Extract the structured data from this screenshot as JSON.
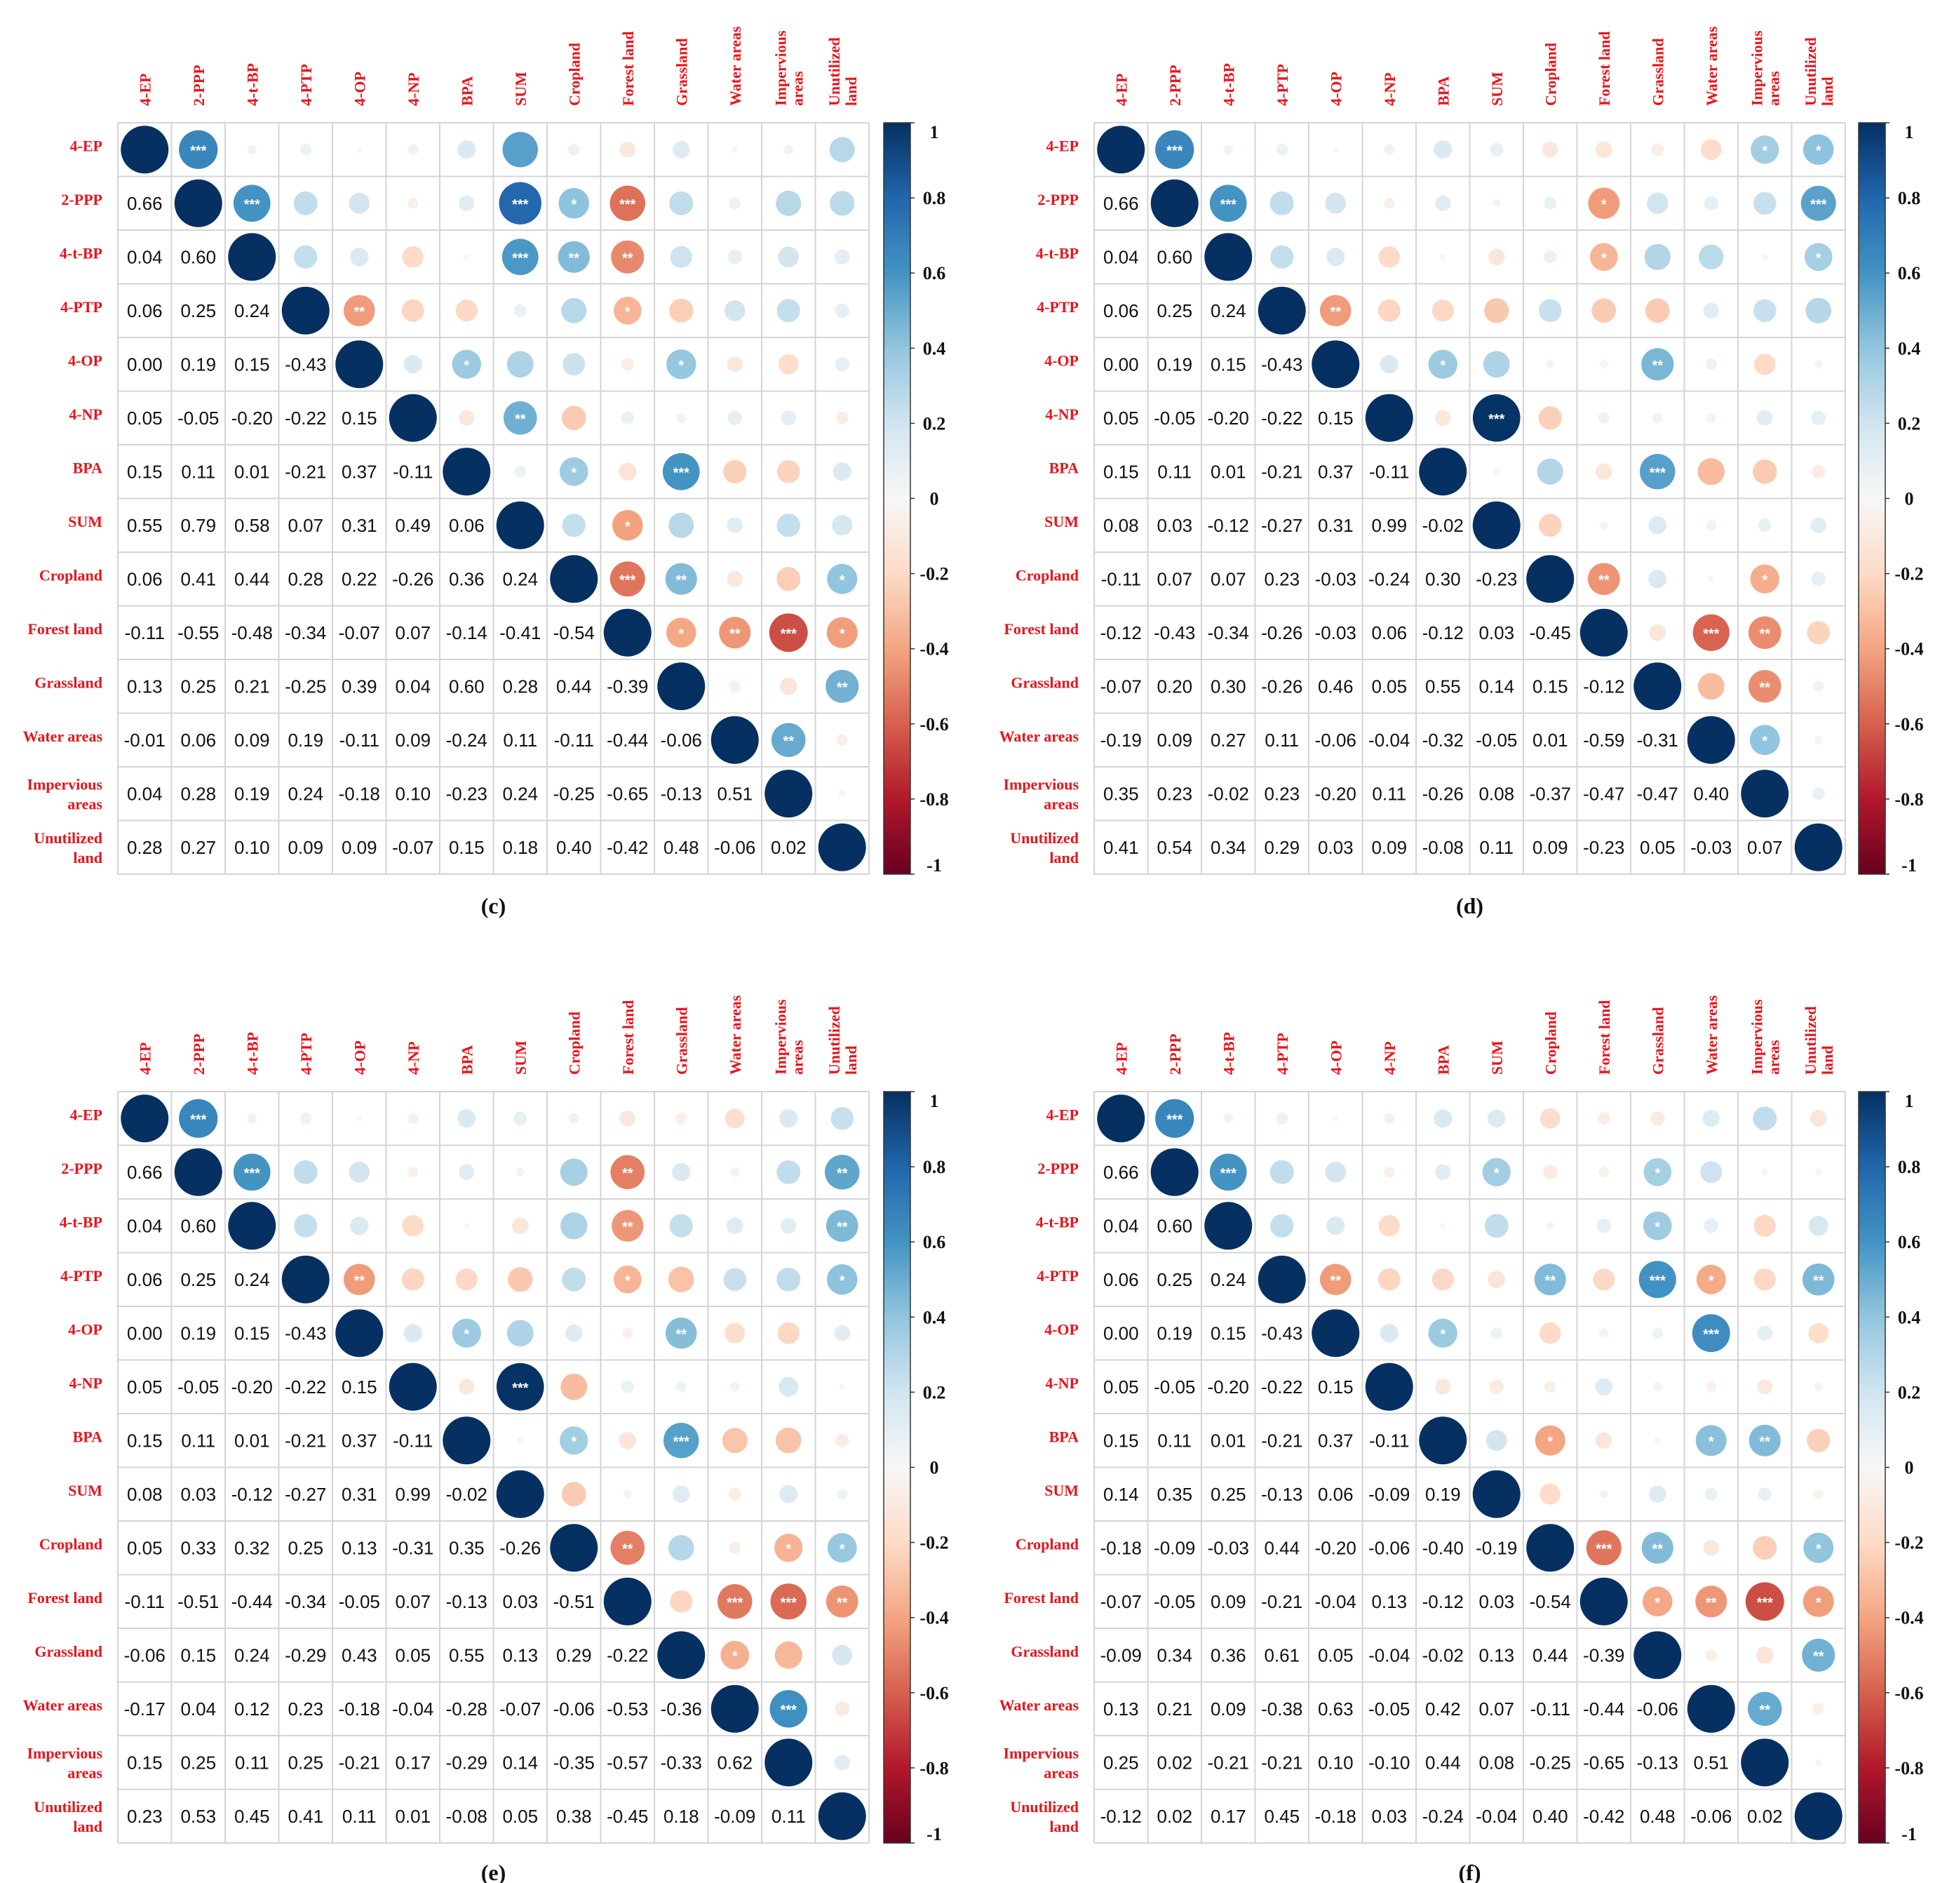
{
  "chart_data": [
    {
      "type": "heatmap",
      "title": "(c)",
      "variables": [
        "4-EP",
        "2-PPP",
        "4-t-BP",
        "4-PTP",
        "4-OP",
        "4-NP",
        "BPA",
        "SUM",
        "Cropland",
        "Forest land",
        "Grassland",
        "Water areas",
        "Impervious areas",
        "Unutilized land"
      ],
      "lower_values": [
        [],
        [
          0.66
        ],
        [
          0.04,
          0.6
        ],
        [
          0.06,
          0.25,
          0.24
        ],
        [
          0.0,
          0.19,
          0.15,
          -0.43
        ],
        [
          0.05,
          -0.05,
          -0.2,
          -0.22,
          0.15
        ],
        [
          0.15,
          0.11,
          0.01,
          -0.21,
          0.37,
          -0.11
        ],
        [
          0.55,
          0.79,
          0.58,
          0.07,
          0.31,
          0.49,
          0.06
        ],
        [
          0.06,
          0.41,
          0.44,
          0.28,
          0.22,
          -0.26,
          0.36,
          0.24
        ],
        [
          -0.11,
          -0.55,
          -0.48,
          -0.34,
          -0.07,
          0.07,
          -0.14,
          -0.41,
          -0.54
        ],
        [
          0.13,
          0.25,
          0.21,
          -0.25,
          0.39,
          0.04,
          0.6,
          0.28,
          0.44,
          -0.39
        ],
        [
          -0.01,
          0.06,
          0.09,
          0.19,
          -0.11,
          0.09,
          -0.24,
          0.11,
          -0.11,
          -0.44,
          -0.06
        ],
        [
          0.04,
          0.28,
          0.19,
          0.24,
          -0.18,
          0.1,
          -0.23,
          0.24,
          -0.25,
          -0.65,
          -0.13,
          0.51
        ],
        [
          0.28,
          0.27,
          0.1,
          0.09,
          0.09,
          -0.07,
          0.15,
          0.18,
          0.4,
          -0.42,
          0.48,
          -0.06,
          0.02
        ]
      ],
      "significance": [
        [
          0,
          1,
          "***"
        ],
        [
          1,
          2,
          "***"
        ],
        [
          1,
          7,
          "***"
        ],
        [
          1,
          8,
          "*"
        ],
        [
          1,
          9,
          "***"
        ],
        [
          2,
          7,
          "***"
        ],
        [
          2,
          8,
          "**"
        ],
        [
          2,
          9,
          "**"
        ],
        [
          3,
          4,
          "**"
        ],
        [
          3,
          9,
          "*"
        ],
        [
          4,
          6,
          "*"
        ],
        [
          4,
          10,
          "*"
        ],
        [
          5,
          7,
          "**"
        ],
        [
          6,
          8,
          "*"
        ],
        [
          6,
          10,
          "***"
        ],
        [
          7,
          9,
          "*"
        ],
        [
          8,
          9,
          "***"
        ],
        [
          8,
          10,
          "**"
        ],
        [
          8,
          13,
          "*"
        ],
        [
          9,
          10,
          "*"
        ],
        [
          9,
          11,
          "**"
        ],
        [
          9,
          12,
          "***"
        ],
        [
          9,
          13,
          "*"
        ],
        [
          10,
          13,
          "**"
        ],
        [
          11,
          12,
          "**"
        ]
      ],
      "color_scale": {
        "min": -1,
        "max": 1,
        "ticks": [
          "1",
          "0.8",
          "0.6",
          "0.4",
          "0.2",
          "0",
          "-0.2",
          "-0.4",
          "-0.6",
          "-0.8",
          "-1"
        ]
      }
    },
    {
      "type": "heatmap",
      "title": "(d)",
      "variables": [
        "4-EP",
        "2-PPP",
        "4-t-BP",
        "4-PTP",
        "4-OP",
        "4-NP",
        "BPA",
        "SUM",
        "Cropland",
        "Forest land",
        "Grassland",
        "Water areas",
        "Impervious areas",
        "Unutilized land"
      ],
      "lower_values": [
        [],
        [
          0.66
        ],
        [
          0.04,
          0.6
        ],
        [
          0.06,
          0.25,
          0.24
        ],
        [
          0.0,
          0.19,
          0.15,
          -0.43
        ],
        [
          0.05,
          -0.05,
          -0.2,
          -0.22,
          0.15
        ],
        [
          0.15,
          0.11,
          0.01,
          -0.21,
          0.37,
          -0.11
        ],
        [
          0.08,
          0.03,
          -0.12,
          -0.27,
          0.31,
          0.99,
          -0.02
        ],
        [
          -0.11,
          0.07,
          0.07,
          0.23,
          -0.03,
          -0.24,
          0.3,
          -0.23
        ],
        [
          -0.12,
          -0.43,
          -0.34,
          -0.26,
          -0.03,
          0.06,
          -0.12,
          0.03,
          -0.45
        ],
        [
          -0.07,
          0.2,
          0.3,
          -0.26,
          0.46,
          0.05,
          0.55,
          0.14,
          0.15,
          -0.12
        ],
        [
          -0.19,
          0.09,
          0.27,
          0.11,
          -0.06,
          -0.04,
          -0.32,
          -0.05,
          0.01,
          -0.59,
          -0.31
        ],
        [
          0.35,
          0.23,
          -0.02,
          0.23,
          -0.2,
          0.11,
          -0.26,
          0.08,
          -0.37,
          -0.47,
          -0.47,
          0.4
        ],
        [
          0.41,
          0.54,
          0.34,
          0.29,
          0.03,
          0.09,
          -0.08,
          0.11,
          0.09,
          -0.23,
          0.05,
          -0.03,
          0.07
        ]
      ],
      "significance": [
        [
          0,
          1,
          "***"
        ],
        [
          0,
          12,
          "*"
        ],
        [
          0,
          13,
          "*"
        ],
        [
          1,
          2,
          "***"
        ],
        [
          1,
          9,
          "*"
        ],
        [
          1,
          13,
          "***"
        ],
        [
          2,
          9,
          "*"
        ],
        [
          2,
          13,
          "*"
        ],
        [
          3,
          4,
          "**"
        ],
        [
          4,
          6,
          "*"
        ],
        [
          4,
          10,
          "**"
        ],
        [
          5,
          7,
          "***"
        ],
        [
          6,
          10,
          "***"
        ],
        [
          8,
          9,
          "**"
        ],
        [
          8,
          12,
          "*"
        ],
        [
          9,
          11,
          "***"
        ],
        [
          9,
          12,
          "**"
        ],
        [
          10,
          12,
          "**"
        ],
        [
          11,
          12,
          "*"
        ]
      ],
      "color_scale": {
        "min": -1,
        "max": 1,
        "ticks": [
          "1",
          "0.8",
          "0.6",
          "0.4",
          "0.2",
          "0",
          "-0.2",
          "-0.4",
          "-0.6",
          "-0.8",
          "-1"
        ]
      }
    },
    {
      "type": "heatmap",
      "title": "(e)",
      "variables": [
        "4-EP",
        "2-PPP",
        "4-t-BP",
        "4-PTP",
        "4-OP",
        "4-NP",
        "BPA",
        "SUM",
        "Cropland",
        "Forest land",
        "Grassland",
        "Water areas",
        "Impervious areas",
        "Unutilized land"
      ],
      "lower_values": [
        [],
        [
          0.66
        ],
        [
          0.04,
          0.6
        ],
        [
          0.06,
          0.25,
          0.24
        ],
        [
          0.0,
          0.19,
          0.15,
          -0.43
        ],
        [
          0.05,
          -0.05,
          -0.2,
          -0.22,
          0.15
        ],
        [
          0.15,
          0.11,
          0.01,
          -0.21,
          0.37,
          -0.11
        ],
        [
          0.08,
          0.03,
          -0.12,
          -0.27,
          0.31,
          0.99,
          -0.02
        ],
        [
          0.05,
          0.33,
          0.32,
          0.25,
          0.13,
          -0.31,
          0.35,
          -0.26
        ],
        [
          -0.11,
          -0.51,
          -0.44,
          -0.34,
          -0.05,
          0.07,
          -0.13,
          0.03,
          -0.51
        ],
        [
          -0.06,
          0.15,
          0.24,
          -0.29,
          0.43,
          0.05,
          0.55,
          0.13,
          0.29,
          -0.22
        ],
        [
          -0.17,
          0.04,
          0.12,
          0.23,
          -0.18,
          -0.04,
          -0.28,
          -0.07,
          -0.06,
          -0.53,
          -0.36
        ],
        [
          0.15,
          0.25,
          0.11,
          0.25,
          -0.21,
          0.17,
          -0.29,
          0.14,
          -0.35,
          -0.57,
          -0.33,
          0.62
        ],
        [
          0.23,
          0.53,
          0.45,
          0.41,
          0.11,
          0.01,
          -0.08,
          0.05,
          0.38,
          -0.45,
          0.18,
          -0.09,
          0.11
        ]
      ],
      "significance": [
        [
          0,
          1,
          "***"
        ],
        [
          1,
          2,
          "***"
        ],
        [
          1,
          9,
          "**"
        ],
        [
          1,
          13,
          "**"
        ],
        [
          2,
          9,
          "**"
        ],
        [
          2,
          13,
          "**"
        ],
        [
          3,
          4,
          "**"
        ],
        [
          3,
          9,
          "*"
        ],
        [
          3,
          13,
          "*"
        ],
        [
          4,
          6,
          "*"
        ],
        [
          4,
          10,
          "**"
        ],
        [
          5,
          7,
          "***"
        ],
        [
          6,
          8,
          "*"
        ],
        [
          6,
          10,
          "***"
        ],
        [
          8,
          9,
          "**"
        ],
        [
          8,
          12,
          "*"
        ],
        [
          8,
          13,
          "*"
        ],
        [
          9,
          11,
          "***"
        ],
        [
          9,
          12,
          "***"
        ],
        [
          9,
          13,
          "**"
        ],
        [
          10,
          11,
          "*"
        ],
        [
          11,
          12,
          "***"
        ]
      ],
      "color_scale": {
        "min": -1,
        "max": 1,
        "ticks": [
          "1",
          "0.8",
          "0.6",
          "0.4",
          "0.2",
          "0",
          "-0.2",
          "-0.4",
          "-0.6",
          "-0.8",
          "-1"
        ]
      }
    },
    {
      "type": "heatmap",
      "title": "(f)",
      "variables": [
        "4-EP",
        "2-PPP",
        "4-t-BP",
        "4-PTP",
        "4-OP",
        "4-NP",
        "BPA",
        "SUM",
        "Cropland",
        "Forest land",
        "Grassland",
        "Water areas",
        "Impervious areas",
        "Unutilized land"
      ],
      "lower_values": [
        [],
        [
          0.66
        ],
        [
          0.04,
          0.6
        ],
        [
          0.06,
          0.25,
          0.24
        ],
        [
          0.0,
          0.19,
          0.15,
          -0.43
        ],
        [
          0.05,
          -0.05,
          -0.2,
          -0.22,
          0.15
        ],
        [
          0.15,
          0.11,
          0.01,
          -0.21,
          0.37,
          -0.11
        ],
        [
          0.14,
          0.35,
          0.25,
          -0.13,
          0.06,
          -0.09,
          0.19
        ],
        [
          -0.18,
          -0.09,
          -0.03,
          0.44,
          -0.2,
          -0.06,
          -0.4,
          -0.19
        ],
        [
          -0.07,
          -0.05,
          0.09,
          -0.21,
          -0.04,
          0.13,
          -0.12,
          0.03,
          -0.54
        ],
        [
          -0.09,
          0.34,
          0.36,
          0.61,
          0.05,
          -0.04,
          -0.02,
          0.13,
          0.44,
          -0.39
        ],
        [
          0.13,
          0.21,
          0.09,
          -0.38,
          0.63,
          -0.05,
          0.42,
          0.07,
          -0.11,
          -0.44,
          -0.06
        ],
        [
          0.25,
          0.02,
          -0.21,
          -0.21,
          0.1,
          -0.1,
          0.44,
          0.08,
          -0.25,
          -0.65,
          -0.13,
          0.51
        ],
        [
          -0.12,
          0.02,
          0.17,
          0.45,
          -0.18,
          0.03,
          -0.24,
          -0.04,
          0.4,
          -0.42,
          0.48,
          -0.06,
          0.02
        ]
      ],
      "significance": [
        [
          0,
          1,
          "***"
        ],
        [
          1,
          2,
          "***"
        ],
        [
          1,
          7,
          "*"
        ],
        [
          1,
          10,
          "*"
        ],
        [
          2,
          10,
          "*"
        ],
        [
          3,
          4,
          "**"
        ],
        [
          3,
          8,
          "**"
        ],
        [
          3,
          10,
          "***"
        ],
        [
          3,
          11,
          "*"
        ],
        [
          3,
          13,
          "**"
        ],
        [
          4,
          6,
          "*"
        ],
        [
          4,
          11,
          "***"
        ],
        [
          6,
          8,
          "*"
        ],
        [
          6,
          11,
          "*"
        ],
        [
          6,
          12,
          "**"
        ],
        [
          8,
          9,
          "***"
        ],
        [
          8,
          10,
          "**"
        ],
        [
          8,
          13,
          "*"
        ],
        [
          9,
          10,
          "*"
        ],
        [
          9,
          11,
          "**"
        ],
        [
          9,
          12,
          "***"
        ],
        [
          9,
          13,
          "*"
        ],
        [
          10,
          13,
          "**"
        ],
        [
          11,
          12,
          "**"
        ]
      ],
      "color_scale": {
        "min": -1,
        "max": 1,
        "ticks": [
          "1",
          "0.8",
          "0.6",
          "0.4",
          "0.2",
          "0",
          "-0.2",
          "-0.4",
          "-0.6",
          "-0.8",
          "-1"
        ]
      }
    }
  ],
  "row_labels": [
    "4-EP",
    "2-PPP",
    "4-t-BP",
    "4-PTP",
    "4-OP",
    "4-NP",
    "BPA",
    "SUM",
    "Cropland",
    "Forest land",
    "Grassland",
    "Water areas",
    [
      "Impervious",
      "areas"
    ],
    [
      "Unutilized",
      "land"
    ]
  ],
  "col_labels": [
    "4-EP",
    "2-PPP",
    "4-t-BP",
    "4-PTP",
    "4-OP",
    "4-NP",
    "BPA",
    "SUM",
    "Cropland",
    "Forest land",
    "Grassland",
    "Water areas",
    [
      "Impervious",
      "areas"
    ],
    [
      "Unutilized",
      "land"
    ]
  ],
  "colors": {
    "label": "#e8141c",
    "positive": "#053061",
    "negative": "#67001f",
    "neutral": "#f7f7f7"
  }
}
